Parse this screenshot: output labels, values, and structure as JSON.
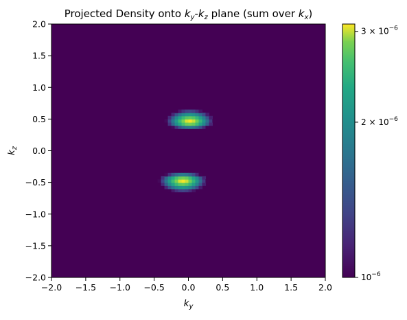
{
  "chart_data": {
    "type": "heatmap",
    "title_parts": [
      "Projected Density onto ",
      "k",
      "y",
      "-",
      "k",
      "z",
      " plane (sum over ",
      "k",
      "x",
      ")"
    ],
    "xlabel_parts": [
      "k",
      "y"
    ],
    "ylabel_parts": [
      "k",
      "z"
    ],
    "xlim": [
      -2.0,
      2.0
    ],
    "ylim": [
      -2.0,
      2.0
    ],
    "xticks": [
      "−2.0",
      "−1.5",
      "−1.0",
      "−0.5",
      "0.0",
      "0.5",
      "1.0",
      "1.5",
      "2.0"
    ],
    "xtick_values": [
      -2.0,
      -1.5,
      -1.0,
      -0.5,
      0.0,
      0.5,
      1.0,
      1.5,
      2.0
    ],
    "yticks": [
      "−2.0",
      "−1.5",
      "−1.0",
      "−0.5",
      "0.0",
      "0.5",
      "1.0",
      "1.5",
      "2.0"
    ],
    "ytick_values": [
      -2.0,
      -1.5,
      -1.0,
      -0.5,
      0.0,
      0.5,
      1.0,
      1.5,
      2.0
    ],
    "colormap": "viridis",
    "colorbar": {
      "scale": "log",
      "range": [
        1e-06,
        3.1e-06
      ],
      "ticks": [
        {
          "value": 1e-06,
          "mantissa": "",
          "base": "10",
          "exp": "−6"
        },
        {
          "value": 2e-06,
          "mantissa": "2 × ",
          "base": "10",
          "exp": "−6"
        },
        {
          "value": 3e-06,
          "mantissa": "3 × ",
          "base": "10",
          "exp": "−6"
        }
      ]
    },
    "blobs": [
      {
        "center_ky": 0.02,
        "center_kz": 0.46,
        "width_ky": 0.36,
        "width_kz": 0.2,
        "peak": 3.1e-06,
        "shape": "upper dome (flat bottom)"
      },
      {
        "center_ky": -0.08,
        "center_kz": -0.46,
        "width_ky": 0.36,
        "width_kz": 0.2,
        "peak": 3.1e-06,
        "shape": "lower dome (flat top)"
      }
    ],
    "background_value": 1e-06
  }
}
